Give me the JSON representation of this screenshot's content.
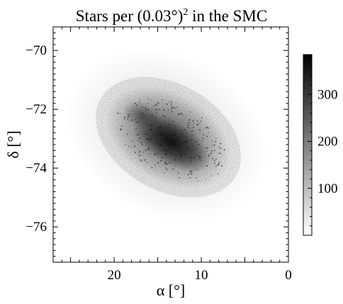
{
  "chart_data": {
    "type": "heatmap",
    "title": "Stars per (0.03°)",
    "title_superscript": "2",
    "title_suffix": " in the SMC",
    "xlabel": "α [°]",
    "ylabel": "δ [°]",
    "xlim": [
      27.0,
      0.0
    ],
    "ylim": [
      -77.2,
      -69.2
    ],
    "x_ticks": [
      20,
      10,
      0
    ],
    "y_ticks": [
      -70,
      -72,
      -74,
      -76
    ],
    "x_inverted": true,
    "grid": false,
    "colormap": "gray_r",
    "colorbar": {
      "min": 0,
      "max": 385,
      "ticks": [
        100,
        200,
        300
      ],
      "placement": "right"
    },
    "density_core": {
      "center": [
        13.5,
        -73.0
      ],
      "peak_value": 385,
      "shape": "elongated bar, tilted toward lower-right"
    },
    "density_wing": {
      "center": [
        16.8,
        -72.2
      ],
      "peak_value": 150
    }
  },
  "colors": {
    "background": "#ffffff",
    "axes": "#000000",
    "colormap_low": "#ffffff",
    "colormap_high": "#000000"
  }
}
